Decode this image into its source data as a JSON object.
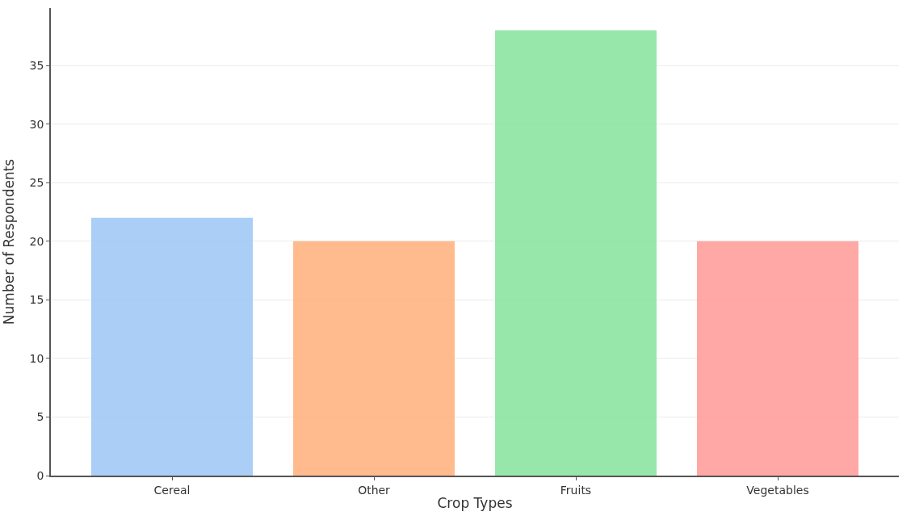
{
  "chart_data": {
    "type": "bar",
    "xlabel": "Crop Types",
    "ylabel": "Number of Respondents",
    "categories": [
      "Cereal",
      "Other",
      "Fruits",
      "Vegetables"
    ],
    "values": [
      22,
      20,
      38,
      20
    ],
    "colors": [
      "#a1c9f4",
      "#ffb482",
      "#8de5a1",
      "#ff9f9b"
    ],
    "ylim": [
      0,
      39.9
    ],
    "yticks": [
      0,
      5,
      10,
      15,
      20,
      25,
      30,
      35
    ],
    "grid": "y"
  }
}
